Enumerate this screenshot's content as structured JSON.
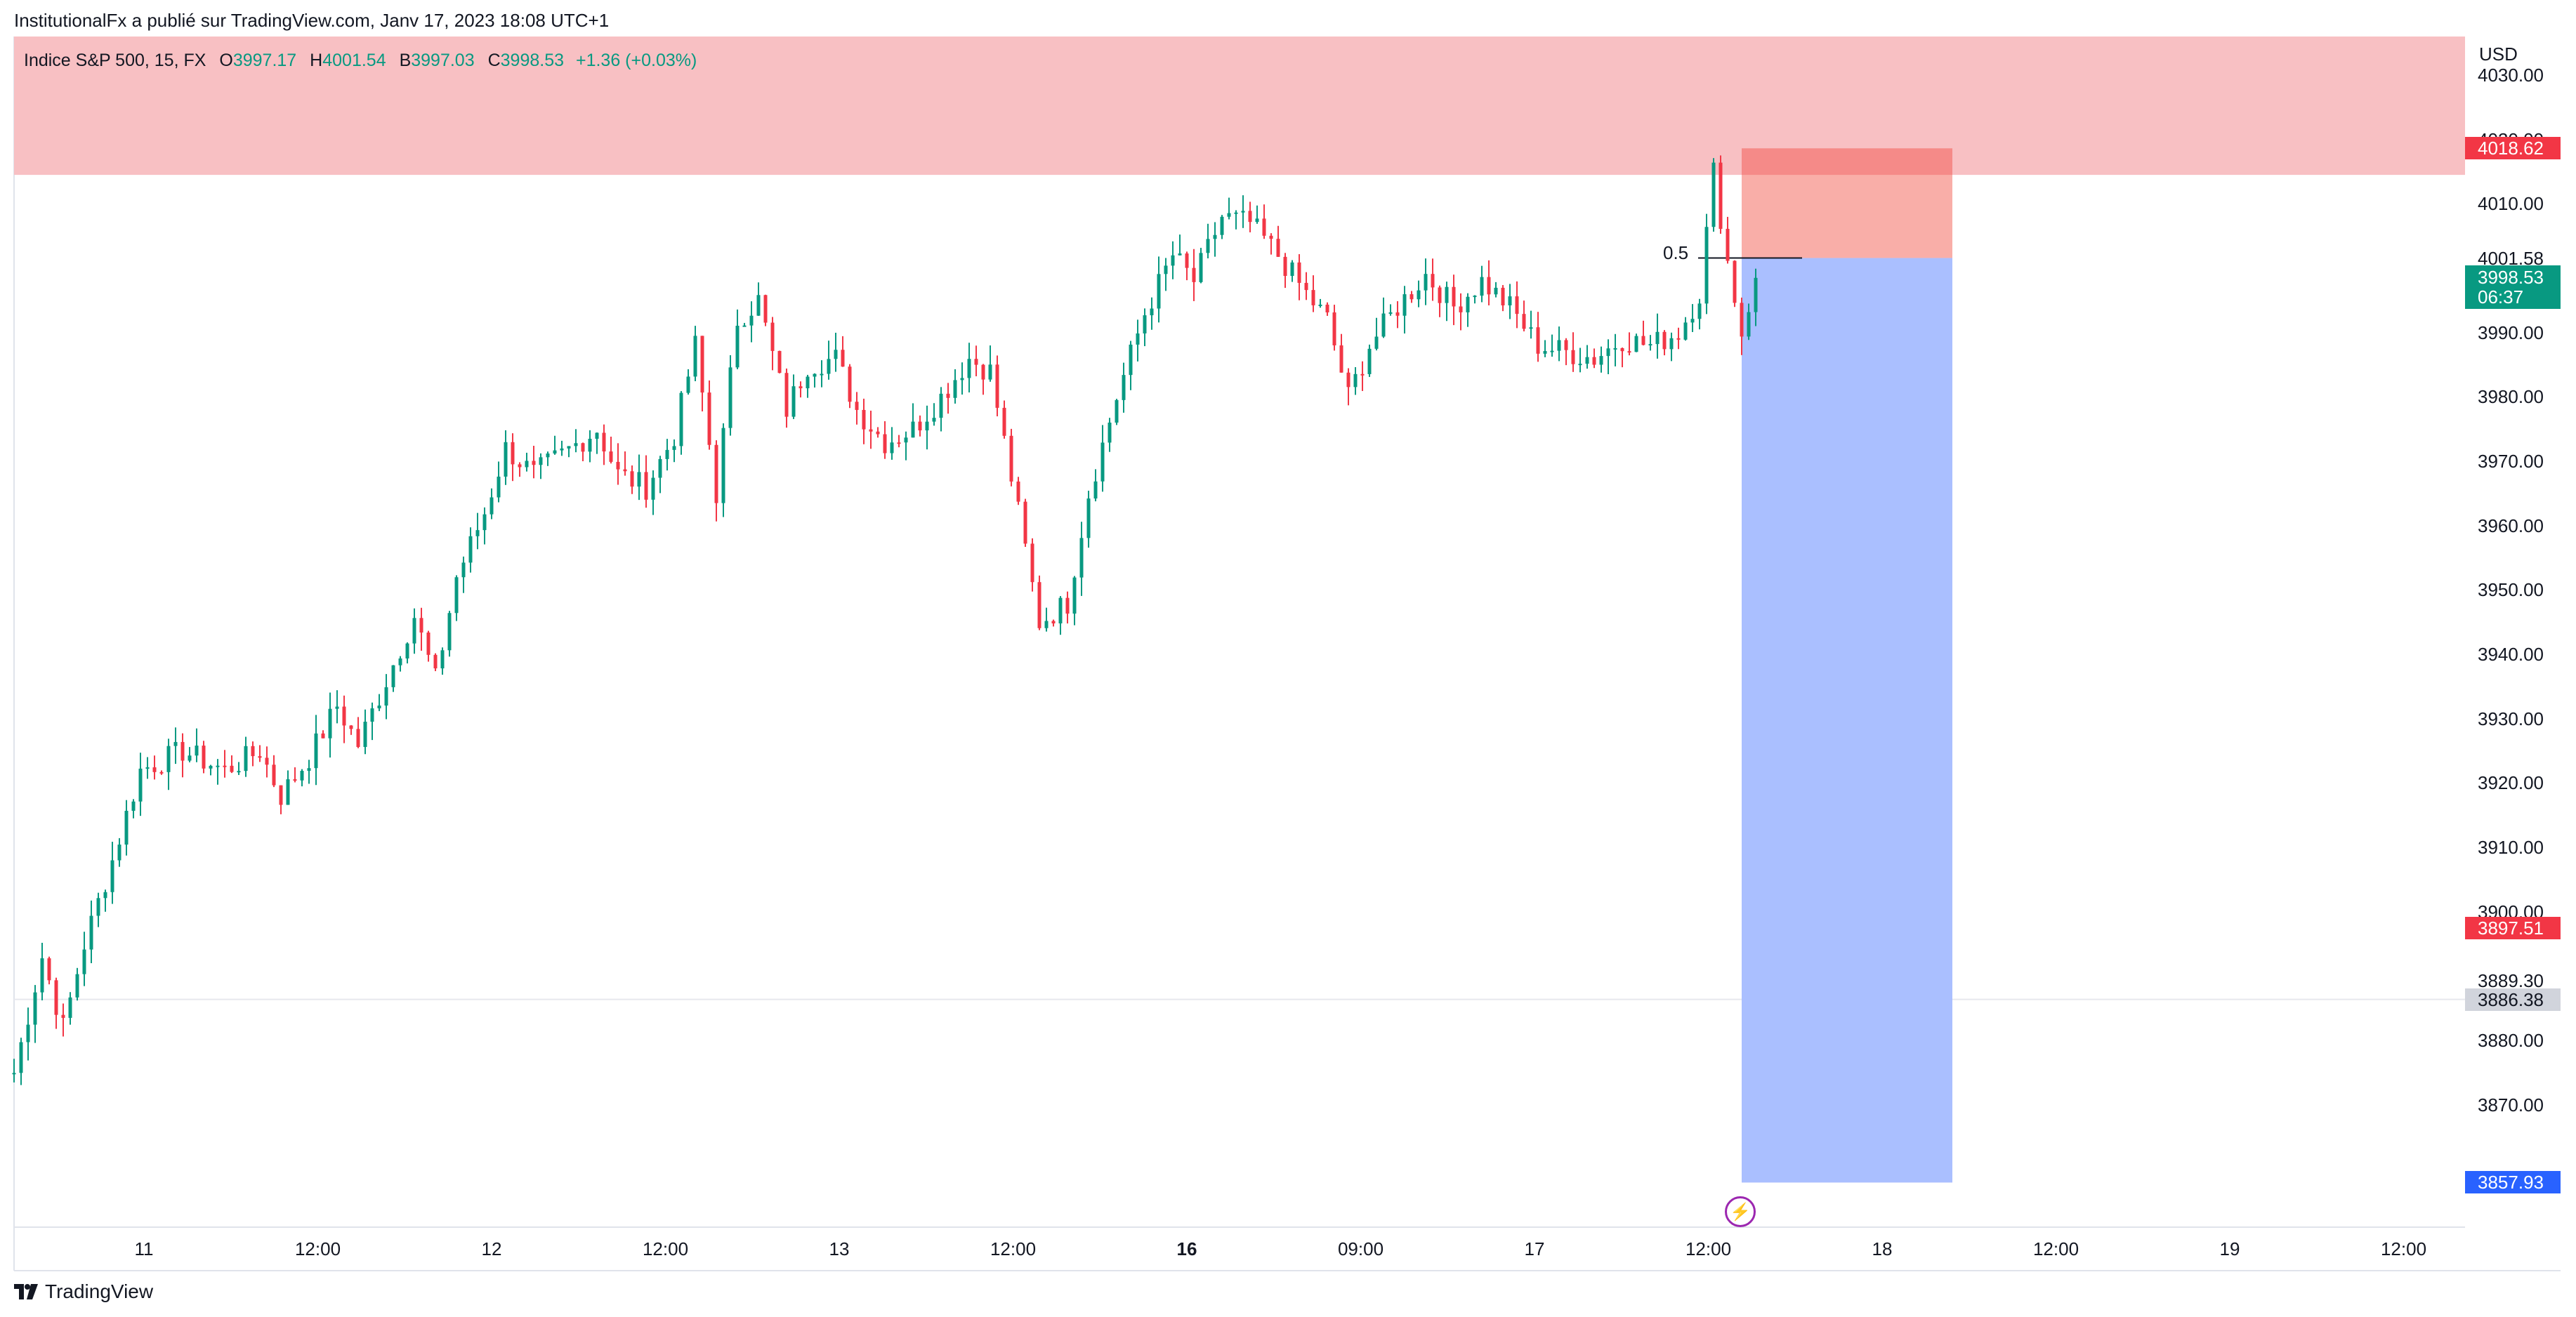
{
  "header": {
    "publisher": "InstitutionalFx a publié sur TradingView.com, Janv 17, 2023 18:08 UTC+1"
  },
  "legend": {
    "symbol": "Indice S&P 500, 15, FX",
    "open_label": "O",
    "open": "3997.17",
    "high_label": "H",
    "high": "4001.54",
    "low_label": "B",
    "low": "3997.03",
    "close_label": "C",
    "close": "3998.53",
    "change": "+1.36 (+0.03%)"
  },
  "currency": "USD",
  "fib_label": "0.5",
  "footer": {
    "brand": "TradingView",
    "logo_icon": "tradingview-logo-icon"
  },
  "colors": {
    "up": "#089981",
    "down": "#f23645",
    "supply_zone": "#f8c0c3",
    "stop_zone": "#f9aea8",
    "target_zone": "#aabfff",
    "tag_red": "#f23645",
    "tag_green": "#089981",
    "tag_blue": "#2962ff",
    "tag_gray": "#d1d4dc"
  },
  "price_tags": {
    "upper": "4018.62",
    "current_price": "3998.53",
    "countdown": "06:37",
    "stop": "3897.51",
    "level": "3886.38",
    "target": "3857.93"
  },
  "levels": {
    "supply_low": 4014.5,
    "position_stop": 4018.62,
    "position_entry": 4001.58,
    "position_target": 3857.93,
    "horizontal_line": 3886.38
  },
  "chart_data": {
    "type": "candlestick",
    "title": "Indice S&P 500, 15, FX",
    "ylim": [
      3851,
      4036
    ],
    "y_ticks": [
      "4030.00",
      "4020.00",
      "4010.00",
      "4001.58",
      "3990.00",
      "3980.00",
      "3970.00",
      "3960.00",
      "3950.00",
      "3940.00",
      "3930.00",
      "3920.00",
      "3910.00",
      "3900.00",
      "3889.30",
      "3880.00",
      "3870.00"
    ],
    "x_ticks": [
      {
        "label": "11",
        "bold": false
      },
      {
        "label": "12:00",
        "bold": false
      },
      {
        "label": "12",
        "bold": false
      },
      {
        "label": "12:00",
        "bold": false
      },
      {
        "label": "13",
        "bold": false
      },
      {
        "label": "12:00",
        "bold": false
      },
      {
        "label": "16",
        "bold": true
      },
      {
        "label": "09:00",
        "bold": false
      },
      {
        "label": "17",
        "bold": false
      },
      {
        "label": "12:00",
        "bold": false
      },
      {
        "label": "18",
        "bold": false
      },
      {
        "label": "12:00",
        "bold": false
      },
      {
        "label": "19",
        "bold": false
      },
      {
        "label": "12:00",
        "bold": false
      }
    ],
    "price_path": [
      [
        0,
        3875
      ],
      [
        4,
        3893
      ],
      [
        7,
        3882
      ],
      [
        10,
        3895
      ],
      [
        14,
        3908
      ],
      [
        18,
        3922
      ],
      [
        24,
        3925
      ],
      [
        30,
        3922
      ],
      [
        35,
        3925
      ],
      [
        38,
        3918
      ],
      [
        42,
        3924
      ],
      [
        46,
        3932
      ],
      [
        49,
        3926
      ],
      [
        53,
        3936
      ],
      [
        57,
        3946
      ],
      [
        60,
        3936
      ],
      [
        63,
        3952
      ],
      [
        67,
        3962
      ],
      [
        70,
        3972
      ],
      [
        74,
        3968
      ],
      [
        78,
        3971
      ],
      [
        83,
        3975
      ],
      [
        86,
        3968
      ],
      [
        90,
        3966
      ],
      [
        94,
        3974
      ],
      [
        97,
        3988
      ],
      [
        100,
        3965
      ],
      [
        103,
        3992
      ],
      [
        106,
        3995
      ],
      [
        110,
        3978
      ],
      [
        113,
        3985
      ],
      [
        117,
        3986
      ],
      [
        120,
        3978
      ],
      [
        124,
        3973
      ],
      [
        128,
        3975
      ],
      [
        132,
        3980
      ],
      [
        136,
        3986
      ],
      [
        139,
        3984
      ],
      [
        143,
        3962
      ],
      [
        146,
        3945
      ],
      [
        150,
        3948
      ],
      [
        153,
        3965
      ],
      [
        157,
        3980
      ],
      [
        161,
        3993
      ],
      [
        165,
        4002
      ],
      [
        168,
        3998
      ],
      [
        172,
        4008
      ],
      [
        176,
        4007
      ],
      [
        180,
        4002
      ],
      [
        184,
        3996
      ],
      [
        187,
        3992
      ],
      [
        190,
        3980
      ],
      [
        193,
        3988
      ],
      [
        197,
        3994
      ],
      [
        201,
        3999
      ],
      [
        205,
        3994
      ],
      [
        209,
        3998
      ],
      [
        213,
        3994
      ],
      [
        217,
        3988
      ],
      [
        221,
        3987
      ],
      [
        225,
        3986
      ],
      [
        229,
        3989
      ],
      [
        233,
        3988
      ],
      [
        237,
        3990
      ],
      [
        240,
        3996
      ],
      [
        242,
        4015
      ],
      [
        244,
        4001
      ],
      [
        246,
        3990
      ],
      [
        248,
        3998.5
      ]
    ],
    "x_index_range": [
      0,
      349
    ]
  }
}
